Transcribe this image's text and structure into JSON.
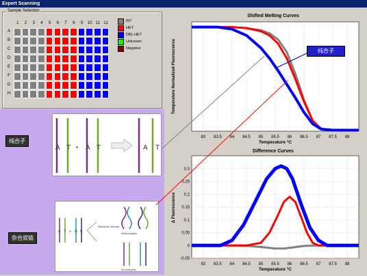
{
  "window": {
    "title": "Expert Scanning"
  },
  "sample_selection": {
    "label": "Sample Selection",
    "columns": [
      "1",
      "2",
      "3",
      "4",
      "5",
      "6",
      "7",
      "8",
      "9",
      "10",
      "11",
      "12"
    ],
    "rows": [
      "A",
      "B",
      "C",
      "D",
      "E",
      "F",
      "G",
      "H"
    ],
    "legend": [
      {
        "label": "WT",
        "color": "#808080"
      },
      {
        "label": "HET",
        "color": "#ff0000"
      },
      {
        "label": "DBL HET",
        "color": "#0000ff"
      },
      {
        "label": "Unknown",
        "color": "#00ff00"
      },
      {
        "label": "Negative",
        "color": "#800000"
      }
    ]
  },
  "overlay": {
    "label_top": "纯合子",
    "label_bottom": "杂合双链",
    "callout": "纯合子",
    "diagram_top": {
      "letters": [
        "A",
        "T",
        "+",
        "A",
        "T",
        "A",
        "T"
      ]
    },
    "diagram_bottom": {
      "letters": [
        "A",
        "T",
        "+",
        "G",
        "C"
      ],
      "note": "Denature/ Anneal",
      "label1": "heteroduplex",
      "label2": "homoduplex"
    }
  },
  "chart_data": [
    {
      "type": "line",
      "title": "Shifted Melting Curves",
      "xlabel": "Temperature °C",
      "ylabel": "Temperature Normalized Fluorescence",
      "xlim": [
        82.6,
        88.4
      ],
      "ylim": [
        0,
        1.05
      ],
      "x_ticks": [
        "83",
        "83.5",
        "84",
        "84.5",
        "85",
        "85.5",
        "86",
        "86.5",
        "87",
        "87.5",
        "88"
      ],
      "series": [
        {
          "color": "#808080",
          "x": [
            82.6,
            84,
            84.5,
            85,
            85.3,
            85.6,
            85.9,
            86.2,
            86.5,
            86.8,
            87.1,
            87.5,
            88.4
          ],
          "y": [
            1,
            1,
            0.99,
            0.97,
            0.94,
            0.88,
            0.76,
            0.55,
            0.3,
            0.1,
            0.02,
            0.01,
            0.01
          ]
        },
        {
          "color": "#ff0000",
          "x": [
            82.6,
            84,
            84.5,
            85,
            85.3,
            85.6,
            85.9,
            86.2,
            86.5,
            86.8,
            87.1,
            87.5,
            88.4
          ],
          "y": [
            1,
            1,
            0.99,
            0.96,
            0.92,
            0.84,
            0.7,
            0.5,
            0.28,
            0.1,
            0.02,
            0.01,
            0.01
          ]
        },
        {
          "color": "#0000ff",
          "x": [
            82.6,
            83.5,
            84,
            84.5,
            85,
            85.3,
            85.6,
            85.9,
            86.2,
            86.5,
            86.8,
            87.1,
            87.5,
            88.4
          ],
          "y": [
            1,
            1,
            0.98,
            0.92,
            0.8,
            0.7,
            0.58,
            0.45,
            0.32,
            0.18,
            0.07,
            0.02,
            0.01,
            0.01
          ]
        }
      ]
    },
    {
      "type": "line",
      "title": "Difference Curves",
      "xlabel": "Temperature °C",
      "ylabel": "Δ Fluorescence",
      "xlim": [
        82.6,
        88.4
      ],
      "ylim": [
        -0.05,
        0.35
      ],
      "x_ticks": [
        "83",
        "83.5",
        "84",
        "84.5",
        "85",
        "85.5",
        "86",
        "86.5",
        "87",
        "87.5",
        "88"
      ],
      "y_ticks": [
        "-0.05",
        "0",
        "0.05",
        "0.1",
        "0.15",
        "0.2",
        "0.25",
        "0.3"
      ],
      "series": [
        {
          "color": "#808080",
          "x": [
            82.6,
            84,
            84.5,
            85,
            85.5,
            85.8,
            86.1,
            86.5,
            87,
            88.4
          ],
          "y": [
            0,
            0,
            -0.002,
            -0.006,
            -0.012,
            -0.012,
            -0.008,
            -0.002,
            0,
            0
          ]
        },
        {
          "color": "#ff0000",
          "x": [
            82.6,
            84.5,
            85,
            85.3,
            85.6,
            85.8,
            86,
            86.2,
            86.4,
            86.6,
            86.8,
            87,
            88.4
          ],
          "y": [
            0,
            0,
            0.01,
            0.05,
            0.12,
            0.17,
            0.19,
            0.17,
            0.11,
            0.05,
            0.01,
            0,
            0
          ]
        },
        {
          "color": "#0000ff",
          "x": [
            82.6,
            83.6,
            84,
            84.4,
            84.8,
            85.2,
            85.5,
            85.7,
            85.9,
            86.1,
            86.4,
            86.7,
            87,
            87.3,
            88.4
          ],
          "y": [
            0,
            0,
            0.02,
            0.08,
            0.17,
            0.26,
            0.3,
            0.31,
            0.3,
            0.26,
            0.16,
            0.07,
            0.02,
            0,
            0
          ]
        }
      ]
    }
  ]
}
